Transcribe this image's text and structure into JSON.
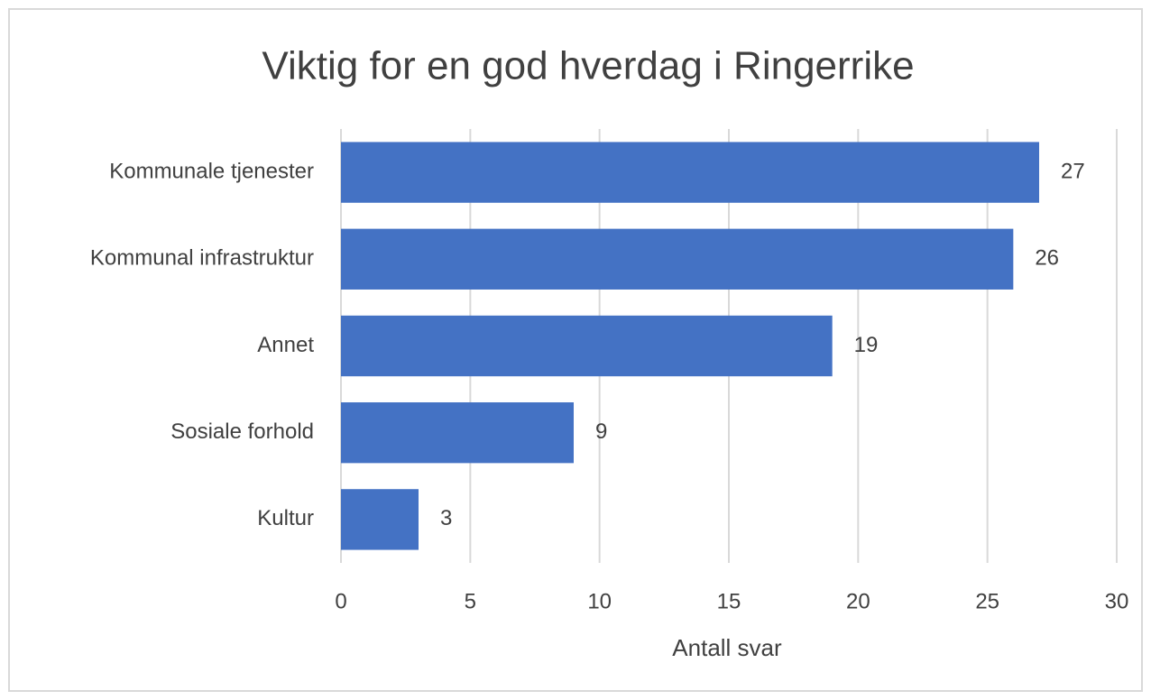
{
  "chart_data": {
    "type": "barh",
    "title": "Viktig for en god hverdag i Ringerrike",
    "categories": [
      "Kommunale tjenester",
      "Kommunal infrastruktur",
      "Annet",
      "Sosiale forhold",
      "Kultur"
    ],
    "values": [
      27,
      26,
      19,
      9,
      3
    ],
    "color": "#4472c4",
    "xlabel": "Antall svar",
    "xlim": [
      0,
      30
    ],
    "xticks": [
      0,
      5,
      10,
      15,
      20,
      25,
      30
    ],
    "grid": true
  }
}
